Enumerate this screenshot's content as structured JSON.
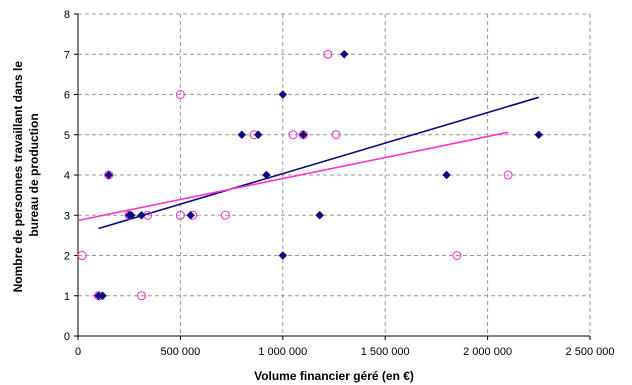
{
  "chart_data": {
    "type": "scatter",
    "title": "",
    "xlabel": "Volume financier géré (en €)",
    "ylabel_lines": [
      "Nombre de personnes travaillant dans le",
      "bureau de production"
    ],
    "xlim": [
      0,
      2500000
    ],
    "ylim": [
      0,
      8
    ],
    "x_ticks": [
      0,
      500000,
      1000000,
      1500000,
      2000000,
      2500000
    ],
    "x_tick_labels": [
      "0",
      "500 000",
      "1 000 000",
      "1 500 000",
      "2 000 000",
      "2 500 000"
    ],
    "y_ticks": [
      0,
      1,
      2,
      3,
      4,
      5,
      6,
      7,
      8
    ],
    "y_tick_labels": [
      "0",
      "1",
      "2",
      "3",
      "4",
      "5",
      "6",
      "7",
      "8"
    ],
    "grid": true,
    "series": [
      {
        "marker": "diamond",
        "color": "#0a0a80",
        "points": [
          [
            100000,
            1
          ],
          [
            120000,
            1
          ],
          [
            150000,
            4
          ],
          [
            250000,
            3
          ],
          [
            260000,
            3
          ],
          [
            310000,
            3
          ],
          [
            550000,
            3
          ],
          [
            800000,
            5
          ],
          [
            880000,
            5
          ],
          [
            920000,
            4
          ],
          [
            1000000,
            6
          ],
          [
            1000000,
            2
          ],
          [
            1100000,
            5
          ],
          [
            1180000,
            3
          ],
          [
            1300000,
            7
          ],
          [
            1800000,
            4
          ],
          [
            2250000,
            5
          ]
        ],
        "trendline": {
          "x": [
            100000,
            2250000
          ],
          "y": [
            2.67,
            5.93
          ]
        }
      },
      {
        "marker": "circle",
        "color": "#ff33cc",
        "points": [
          [
            20000,
            2
          ],
          [
            100000,
            1
          ],
          [
            150000,
            4
          ],
          [
            250000,
            3
          ],
          [
            310000,
            1
          ],
          [
            340000,
            3
          ],
          [
            500000,
            6
          ],
          [
            500000,
            3
          ],
          [
            560000,
            3
          ],
          [
            720000,
            3
          ],
          [
            860000,
            5
          ],
          [
            1050000,
            5
          ],
          [
            1100000,
            5
          ],
          [
            1220000,
            7
          ],
          [
            1260000,
            5
          ],
          [
            1850000,
            2
          ],
          [
            2100000,
            4
          ]
        ],
        "trendline": {
          "x": [
            0,
            2100000
          ],
          "y": [
            2.87,
            5.06
          ]
        }
      }
    ]
  }
}
